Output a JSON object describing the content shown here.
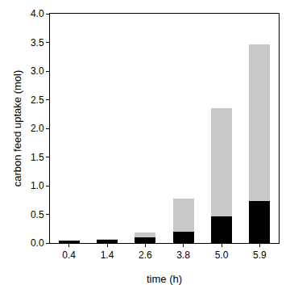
{
  "chart_data": {
    "type": "bar",
    "stacked": true,
    "grid": false,
    "x_label": "time (h)",
    "y_label": "carbon feed uptake (mol)",
    "categories": [
      "0.4",
      "1.4",
      "2.6",
      "3.8",
      "5.0",
      "5.9"
    ],
    "series": [
      {
        "color": "#000000",
        "values": [
          0.04,
          0.06,
          0.1,
          0.2,
          0.47,
          0.73
        ]
      },
      {
        "color": "#c8c8c8",
        "values": [
          0.0,
          0.01,
          0.09,
          0.57,
          1.88,
          2.74
        ]
      }
    ],
    "ylim": [
      0,
      4
    ],
    "yticks": [
      {
        "value": 0,
        "label": "0.0"
      },
      {
        "value": 0.5,
        "label": "0.5"
      },
      {
        "value": 1,
        "label": "1.0"
      },
      {
        "value": 1.5,
        "label": "1.5"
      },
      {
        "value": 2,
        "label": "2.0"
      },
      {
        "value": 2.5,
        "label": "2.5"
      },
      {
        "value": 3,
        "label": "3.0"
      },
      {
        "value": 3.5,
        "label": "3.5"
      },
      {
        "value": 4,
        "label": "4.0"
      }
    ]
  }
}
